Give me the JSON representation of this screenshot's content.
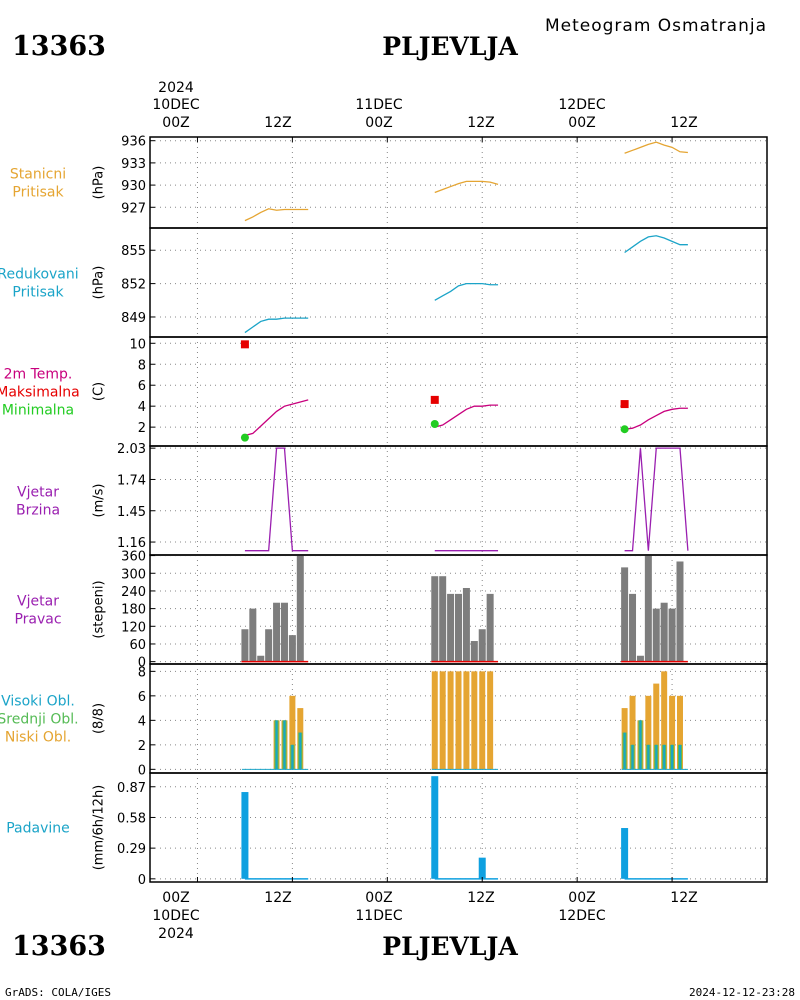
{
  "header": {
    "station_id": "13363",
    "station_name": "PLJEVLJA",
    "subtitle": "Meteogram Osmatranja"
  },
  "footer": {
    "credit": "GrADS: COLA/IGES",
    "timestamp": "2024-12-12-23:28"
  },
  "time_axis": {
    "year": "2024",
    "day_labels": [
      "10DEC",
      "11DEC",
      "12DEC"
    ],
    "hour_labels": [
      "00Z",
      "12Z"
    ],
    "range_hours": [
      -6,
      72
    ]
  },
  "colors": {
    "orange": "#e5a532",
    "cyan": "#1ba4c8",
    "magenta": "#c8007d",
    "red": "#e60000",
    "green": "#22cc22",
    "purple": "#9a1fb0",
    "gray": "#7d7d7d",
    "blue": "#0ea0e0",
    "cloud_green": "#55bb55"
  },
  "chart_data": [
    {
      "id": "pressure_station",
      "type": "line",
      "labels": [
        {
          "text": "Stanicni",
          "color": "orange"
        },
        {
          "text": "Pritisak",
          "color": "orange"
        }
      ],
      "ylabel": "(hPa)",
      "ylim": [
        924.2,
        936.5
      ],
      "yticks": [
        927,
        930,
        933,
        936
      ],
      "series": [
        {
          "color": "orange",
          "x": [
            6,
            7,
            8,
            9,
            10,
            11,
            12,
            13,
            14
          ],
          "y": [
            925.2,
            925.7,
            926.3,
            926.8,
            926.6,
            926.7,
            926.7,
            926.7,
            926.7
          ]
        },
        {
          "color": "orange",
          "x": [
            30,
            31,
            32,
            33,
            34,
            35,
            36,
            37,
            38
          ],
          "y": [
            929.0,
            929.4,
            929.8,
            930.2,
            930.5,
            930.5,
            930.5,
            930.4,
            930.1
          ]
        },
        {
          "color": "orange",
          "x": [
            54,
            55,
            56,
            57,
            58,
            59,
            60,
            61,
            62
          ],
          "y": [
            934.3,
            934.7,
            935.1,
            935.5,
            935.8,
            935.4,
            935.1,
            934.5,
            934.4
          ]
        }
      ]
    },
    {
      "id": "pressure_reduced",
      "type": "line",
      "labels": [
        {
          "text": "Redukovani",
          "color": "cyan"
        },
        {
          "text": "Pritisak",
          "color": "cyan"
        }
      ],
      "ylabel": "(hPa)",
      "ylim": [
        847.2,
        857.0
      ],
      "yticks": [
        849,
        852,
        855
      ],
      "series": [
        {
          "color": "cyan",
          "x": [
            6,
            7,
            8,
            9,
            10,
            11,
            12,
            13,
            14
          ],
          "y": [
            847.6,
            848.1,
            848.6,
            848.8,
            848.8,
            848.9,
            848.9,
            848.9,
            848.9
          ]
        },
        {
          "color": "cyan",
          "x": [
            30,
            31,
            32,
            33,
            34,
            35,
            36,
            37,
            38
          ],
          "y": [
            850.5,
            850.9,
            851.3,
            851.8,
            852.0,
            852.0,
            852.0,
            851.9,
            851.9
          ]
        },
        {
          "color": "cyan",
          "x": [
            54,
            55,
            56,
            57,
            58,
            59,
            60,
            61,
            62
          ],
          "y": [
            854.8,
            855.3,
            855.8,
            856.2,
            856.3,
            856.1,
            855.8,
            855.5,
            855.5
          ]
        }
      ]
    },
    {
      "id": "temperature",
      "type": "line",
      "labels": [
        {
          "text": "2m Temp.",
          "color": "magenta"
        },
        {
          "text": "Maksimalna",
          "color": "red"
        },
        {
          "text": "Minimalna",
          "color": "green"
        }
      ],
      "ylabel": "(C)",
      "ylim": [
        0.2,
        10.6
      ],
      "yticks": [
        2,
        4,
        6,
        8,
        10
      ],
      "series": [
        {
          "color": "magenta",
          "x": [
            6,
            7,
            8,
            9,
            10,
            11,
            12,
            13,
            14
          ],
          "y": [
            1.2,
            1.4,
            2.1,
            2.8,
            3.5,
            4.0,
            4.2,
            4.4,
            4.6
          ]
        },
        {
          "color": "magenta",
          "x": [
            30,
            31,
            32,
            33,
            34,
            35,
            36,
            37,
            38
          ],
          "y": [
            2.0,
            2.2,
            2.7,
            3.2,
            3.7,
            4.0,
            4.0,
            4.1,
            4.1
          ]
        },
        {
          "color": "magenta",
          "x": [
            54,
            55,
            56,
            57,
            58,
            59,
            60,
            61,
            62
          ],
          "y": [
            1.8,
            1.9,
            2.2,
            2.7,
            3.1,
            3.5,
            3.7,
            3.8,
            3.8
          ]
        }
      ],
      "maximum": {
        "color": "red",
        "x": [
          6,
          30,
          54
        ],
        "y": [
          9.9,
          4.6,
          4.2
        ]
      },
      "minimum": {
        "color": "green",
        "x": [
          6,
          30,
          54
        ],
        "y": [
          1.0,
          2.3,
          1.8
        ]
      }
    },
    {
      "id": "wind_speed",
      "type": "line",
      "labels": [
        {
          "text": "Vjetar",
          "color": "purple"
        },
        {
          "text": "Brzina",
          "color": "purple"
        }
      ],
      "ylabel": "(m/s)",
      "ylim": [
        1.04,
        2.05
      ],
      "yticks": [
        1.16,
        1.45,
        1.74,
        2.03
      ],
      "ytick_labels": [
        "1.16",
        "1.45",
        "1.74",
        "2.03"
      ],
      "series": [
        {
          "color": "purple",
          "x": [
            6,
            7,
            8,
            9,
            10,
            11,
            12,
            13,
            14
          ],
          "y": [
            1.08,
            1.08,
            1.08,
            1.08,
            2.03,
            2.03,
            1.08,
            1.08,
            1.08
          ]
        },
        {
          "color": "purple",
          "x": [
            30,
            31,
            32,
            33,
            34,
            35,
            36,
            37,
            38
          ],
          "y": [
            1.08,
            1.08,
            1.08,
            1.08,
            1.08,
            1.08,
            1.08,
            1.08,
            1.08
          ]
        },
        {
          "color": "purple",
          "x": [
            54,
            55,
            56,
            57,
            58,
            59,
            60,
            61,
            62
          ],
          "y": [
            1.08,
            1.08,
            2.03,
            1.08,
            2.03,
            2.03,
            2.03,
            2.03,
            1.08
          ]
        }
      ]
    },
    {
      "id": "wind_direction",
      "type": "bar",
      "labels": [
        {
          "text": "Vjetar",
          "color": "purple"
        },
        {
          "text": "Pravac",
          "color": "purple"
        }
      ],
      "ylabel": "(stepeni)",
      "ylim": [
        -8,
        362
      ],
      "yticks": [
        0,
        60,
        120,
        180,
        240,
        300,
        360
      ],
      "ytick_labels": [
        "0",
        "60",
        "120",
        "180",
        "240",
        "300",
        "360"
      ],
      "bar_color": "gray",
      "baseline_color": "red",
      "x": [
        6,
        7,
        8,
        9,
        10,
        11,
        12,
        13,
        30,
        31,
        32,
        33,
        34,
        35,
        36,
        37,
        54,
        55,
        56,
        57,
        58,
        59,
        60,
        61
      ],
      "values": [
        110,
        180,
        20,
        110,
        200,
        200,
        90,
        360,
        290,
        290,
        230,
        230,
        250,
        70,
        110,
        230,
        320,
        230,
        20,
        360,
        180,
        200,
        180,
        340
      ]
    },
    {
      "id": "cloud_cover",
      "type": "bar",
      "labels": [
        {
          "text": "Visoki Obl.",
          "color": "cyan"
        },
        {
          "text": "Srednji Obl.",
          "color": "cloud_green"
        },
        {
          "text": "Niski Obl.",
          "color": "orange"
        }
      ],
      "ylabel": "(8/8)",
      "ylim": [
        -0.3,
        8.6
      ],
      "yticks": [
        0,
        2,
        4,
        6,
        8
      ],
      "x": [
        6,
        7,
        8,
        9,
        10,
        11,
        12,
        13,
        30,
        31,
        32,
        33,
        34,
        35,
        36,
        37,
        54,
        55,
        56,
        57,
        58,
        59,
        60,
        61
      ],
      "series": [
        {
          "name": "Visoki Obl.",
          "color": "cyan",
          "values": [
            0,
            0,
            0,
            0,
            4,
            4,
            2,
            3,
            0,
            0,
            0,
            0,
            0,
            0,
            0,
            0,
            3,
            2,
            4,
            2,
            2,
            2,
            2,
            2
          ]
        },
        {
          "name": "Srednji Obl.",
          "color": "cloud_green",
          "values": [
            0,
            0,
            0,
            0,
            4,
            4,
            2,
            3,
            0,
            0,
            0,
            0,
            0,
            0,
            0,
            0,
            3,
            2,
            4,
            2,
            2,
            2,
            2,
            2
          ]
        },
        {
          "name": "Niski Obl.",
          "color": "orange",
          "values": [
            0,
            0,
            0,
            0,
            4,
            4,
            6,
            5,
            8,
            8,
            8,
            8,
            8,
            8,
            8,
            8,
            5,
            6,
            4,
            6,
            7,
            8,
            6,
            6
          ]
        }
      ]
    },
    {
      "id": "precipitation",
      "type": "bar",
      "labels": [
        {
          "text": "Padavine",
          "color": "cyan"
        }
      ],
      "ylabel": "(mm/6h/12h)",
      "ylim": [
        -0.03,
        1.0
      ],
      "yticks": [
        0,
        0.29,
        0.58,
        0.87
      ],
      "ytick_labels": [
        "0",
        "0.29",
        "0.58",
        "0.87"
      ],
      "bar_color": "blue",
      "x": [
        6,
        7,
        8,
        9,
        10,
        11,
        12,
        13,
        30,
        31,
        32,
        33,
        34,
        35,
        36,
        37,
        54,
        55,
        56,
        57,
        58,
        59,
        60,
        61
      ],
      "values": [
        0.82,
        0,
        0,
        0,
        0,
        0,
        0,
        0,
        0.97,
        0,
        0,
        0,
        0,
        0,
        0.2,
        0,
        0.48,
        0,
        0,
        0,
        0,
        0,
        0,
        0
      ]
    }
  ]
}
